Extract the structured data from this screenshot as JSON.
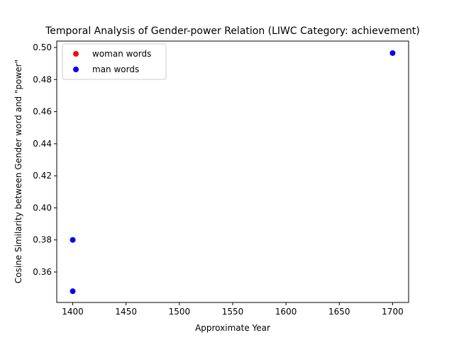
{
  "chart_data": {
    "type": "scatter",
    "title": "Temporal Analysis of Gender-power Relation (LIWC Category: achievement)",
    "xlabel": "Approximate Year",
    "ylabel": "Cosine Similarity between Gender word and \"power\"",
    "xlim": [
      1385,
      1715
    ],
    "ylim": [
      0.341,
      0.504
    ],
    "xticks": [
      1400,
      1450,
      1500,
      1550,
      1600,
      1650,
      1700
    ],
    "yticks": [
      0.36,
      0.38,
      0.4,
      0.42,
      0.44,
      0.46,
      0.48,
      0.5
    ],
    "xtick_labels": [
      "1400",
      "1450",
      "1500",
      "1550",
      "1600",
      "1650",
      "1700"
    ],
    "ytick_labels": [
      "0.36",
      "0.38",
      "0.40",
      "0.42",
      "0.44",
      "0.46",
      "0.48",
      "0.50"
    ],
    "grid": false,
    "legend_position": "top-left",
    "series": [
      {
        "name": "woman words",
        "color": "#ff0000",
        "points": []
      },
      {
        "name": "man words",
        "color": "#0000ff",
        "points": [
          {
            "x": 1400,
            "y": 0.38
          },
          {
            "x": 1400,
            "y": 0.348
          },
          {
            "x": 1700,
            "y": 0.4965
          }
        ]
      }
    ]
  }
}
